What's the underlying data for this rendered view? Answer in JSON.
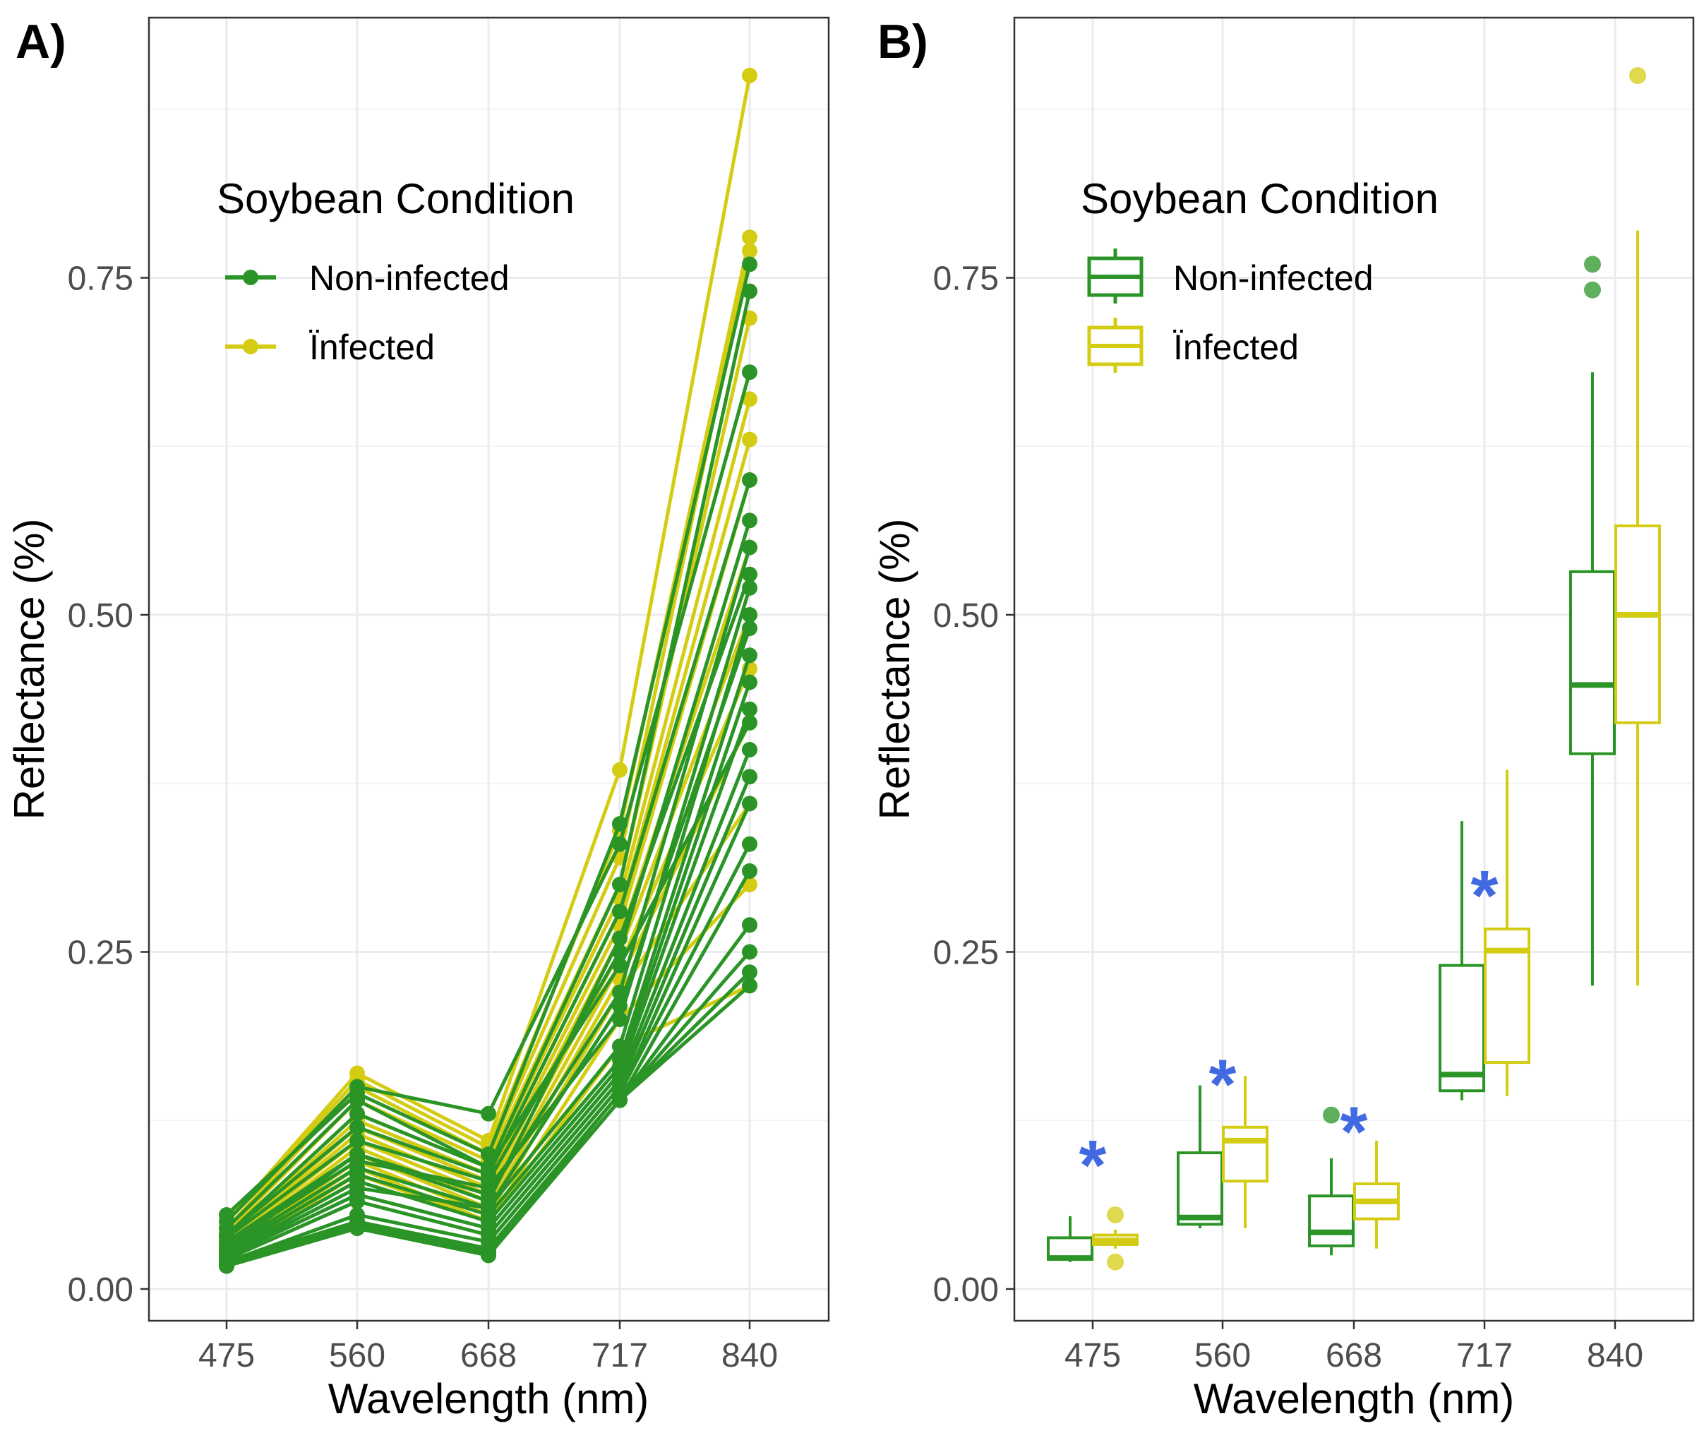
{
  "figure": {
    "panel_a_label": "A)",
    "panel_b_label": "B)"
  },
  "colors": {
    "non_infected": "#2a9427",
    "infected": "#d4cc12",
    "star": "#4169e1"
  },
  "chart_data": [
    {
      "panel": "A)",
      "type": "line",
      "xlabel": "Wavelength (nm)",
      "ylabel": "Reflectance (%)",
      "categories": [
        "475",
        "560",
        "668",
        "717",
        "840"
      ],
      "yticks": [
        "0.00",
        "0.25",
        "0.50",
        "0.75"
      ],
      "ylim": [
        -0.025,
        0.94
      ],
      "legend": {
        "title": "Soybean Condition",
        "position": "top-left",
        "entries": [
          "Non-infected",
          "Ïnfected"
        ]
      },
      "series": [
        {
          "name": "Non-infected",
          "group": "Non-infected",
          "values": [
            0.05,
            0.15,
            0.13,
            0.33,
            0.68
          ]
        },
        {
          "name": "Non-infected",
          "group": "Non-infected",
          "values": [
            0.055,
            0.145,
            0.1,
            0.345,
            0.76
          ]
        },
        {
          "name": "Non-infected",
          "group": "Non-infected",
          "values": [
            0.045,
            0.14,
            0.09,
            0.3,
            0.74
          ]
        },
        {
          "name": "Non-infected",
          "group": "Non-infected",
          "values": [
            0.04,
            0.12,
            0.085,
            0.28,
            0.6
          ]
        },
        {
          "name": "Non-infected",
          "group": "Non-infected",
          "values": [
            0.038,
            0.11,
            0.08,
            0.25,
            0.57
          ]
        },
        {
          "name": "Non-infected",
          "group": "Non-infected",
          "values": [
            0.035,
            0.1,
            0.07,
            0.22,
            0.55
          ]
        },
        {
          "name": "Non-infected",
          "group": "Non-infected",
          "values": [
            0.033,
            0.095,
            0.075,
            0.2,
            0.52
          ]
        },
        {
          "name": "Non-infected",
          "group": "Non-infected",
          "values": [
            0.03,
            0.09,
            0.06,
            0.18,
            0.5
          ]
        },
        {
          "name": "Non-infected",
          "group": "Non-infected",
          "values": [
            0.028,
            0.085,
            0.055,
            0.17,
            0.47
          ]
        },
        {
          "name": "Non-infected",
          "group": "Non-infected",
          "values": [
            0.026,
            0.08,
            0.05,
            0.165,
            0.45
          ]
        },
        {
          "name": "Non-infected",
          "group": "Non-infected",
          "values": [
            0.024,
            0.07,
            0.045,
            0.16,
            0.43
          ]
        },
        {
          "name": "Non-infected",
          "group": "Non-infected",
          "values": [
            0.022,
            0.065,
            0.04,
            0.155,
            0.4
          ]
        },
        {
          "name": "Non-infected",
          "group": "Non-infected",
          "values": [
            0.02,
            0.055,
            0.035,
            0.15,
            0.38
          ]
        },
        {
          "name": "Non-infected",
          "group": "Non-infected",
          "values": [
            0.02,
            0.05,
            0.03,
            0.145,
            0.36
          ]
        },
        {
          "name": "Non-infected",
          "group": "Non-infected",
          "values": [
            0.02,
            0.05,
            0.028,
            0.145,
            0.33
          ]
        },
        {
          "name": "Non-infected",
          "group": "Non-infected",
          "values": [
            0.018,
            0.048,
            0.027,
            0.14,
            0.31
          ]
        },
        {
          "name": "Non-infected",
          "group": "Non-infected",
          "values": [
            0.018,
            0.047,
            0.026,
            0.14,
            0.27
          ]
        },
        {
          "name": "Non-infected",
          "group": "Non-infected",
          "values": [
            0.018,
            0.046,
            0.026,
            0.14,
            0.25
          ]
        },
        {
          "name": "Non-infected",
          "group": "Non-infected",
          "values": [
            0.017,
            0.045,
            0.025,
            0.14,
            0.235
          ]
        },
        {
          "name": "Non-infected",
          "group": "Non-infected",
          "values": [
            0.017,
            0.045,
            0.025,
            0.14,
            0.225
          ]
        },
        {
          "name": "Non-infected",
          "group": "Non-infected",
          "values": [
            0.025,
            0.075,
            0.06,
            0.21,
            0.49
          ]
        },
        {
          "name": "Non-infected",
          "group": "Non-infected",
          "values": [
            0.03,
            0.1,
            0.065,
            0.26,
            0.53
          ]
        },
        {
          "name": "Non-infected",
          "group": "Non-infected",
          "values": [
            0.04,
            0.13,
            0.09,
            0.24,
            0.42
          ]
        },
        {
          "name": "Infected",
          "group": "Ïnfected",
          "values": [
            0.05,
            0.16,
            0.11,
            0.385,
            0.9
          ]
        },
        {
          "name": "Infected",
          "group": "Ïnfected",
          "values": [
            0.05,
            0.155,
            0.105,
            0.34,
            0.78
          ]
        },
        {
          "name": "Infected",
          "group": "Ïnfected",
          "values": [
            0.045,
            0.15,
            0.1,
            0.32,
            0.77
          ]
        },
        {
          "name": "Infected",
          "group": "Ïnfected",
          "values": [
            0.042,
            0.14,
            0.095,
            0.3,
            0.72
          ]
        },
        {
          "name": "Infected",
          "group": "Ïnfected",
          "values": [
            0.04,
            0.13,
            0.09,
            0.29,
            0.66
          ]
        },
        {
          "name": "Infected",
          "group": "Ïnfected",
          "values": [
            0.038,
            0.125,
            0.085,
            0.28,
            0.63
          ]
        },
        {
          "name": "Infected",
          "group": "Ïnfected",
          "values": [
            0.036,
            0.12,
            0.08,
            0.27,
            0.6
          ]
        },
        {
          "name": "Infected",
          "group": "Ïnfected",
          "values": [
            0.035,
            0.115,
            0.075,
            0.26,
            0.55
          ]
        },
        {
          "name": "Infected",
          "group": "Ïnfected",
          "values": [
            0.034,
            0.11,
            0.07,
            0.25,
            0.5
          ]
        },
        {
          "name": "Infected",
          "group": "Ïnfected",
          "values": [
            0.032,
            0.105,
            0.065,
            0.24,
            0.46
          ]
        },
        {
          "name": "Infected",
          "group": "Ïnfected",
          "values": [
            0.03,
            0.1,
            0.06,
            0.23,
            0.42
          ]
        },
        {
          "name": "Infected",
          "group": "Ïnfected",
          "values": [
            0.028,
            0.095,
            0.055,
            0.22,
            0.36
          ]
        },
        {
          "name": "Infected",
          "group": "Ïnfected",
          "values": [
            0.026,
            0.09,
            0.05,
            0.2,
            0.3
          ]
        },
        {
          "name": "Infected",
          "group": "Ïnfected",
          "values": [
            0.025,
            0.085,
            0.05,
            0.18,
            0.225
          ]
        }
      ]
    },
    {
      "panel": "B)",
      "type": "box",
      "xlabel": "Wavelength (nm)",
      "ylabel": "Reflectance (%)",
      "categories": [
        "475",
        "560",
        "668",
        "717",
        "840"
      ],
      "yticks": [
        "0.00",
        "0.25",
        "0.50",
        "0.75"
      ],
      "ylim": [
        -0.025,
        0.94
      ],
      "legend": {
        "title": "Soybean Condition",
        "position": "top-left",
        "entries": [
          "Non-infected",
          "Ïnfected"
        ]
      },
      "significance_marker": "*",
      "significant_categories": [
        "475",
        "560",
        "668",
        "717"
      ],
      "series": [
        {
          "name": "Non-infected",
          "boxes": [
            {
              "category": "475",
              "min": 0.02,
              "q1": 0.022,
              "median": 0.023,
              "q3": 0.038,
              "max": 0.054,
              "outliers": []
            },
            {
              "category": "560",
              "min": 0.045,
              "q1": 0.048,
              "median": 0.053,
              "q3": 0.101,
              "max": 0.151,
              "outliers": []
            },
            {
              "category": "668",
              "min": 0.025,
              "q1": 0.032,
              "median": 0.042,
              "q3": 0.069,
              "max": 0.097,
              "outliers": [
                0.129
              ]
            },
            {
              "category": "717",
              "min": 0.14,
              "q1": 0.147,
              "median": 0.159,
              "q3": 0.24,
              "max": 0.347,
              "outliers": []
            },
            {
              "category": "840",
              "min": 0.225,
              "q1": 0.397,
              "median": 0.448,
              "q3": 0.532,
              "max": 0.68,
              "outliers": [
                0.741,
                0.76
              ]
            }
          ]
        },
        {
          "name": "Ïnfected",
          "boxes": [
            {
              "category": "475",
              "min": 0.03,
              "q1": 0.033,
              "median": 0.036,
              "q3": 0.04,
              "max": 0.044,
              "outliers": [
                0.02,
                0.055
              ]
            },
            {
              "category": "560",
              "min": 0.045,
              "q1": 0.08,
              "median": 0.11,
              "q3": 0.12,
              "max": 0.158,
              "outliers": []
            },
            {
              "category": "668",
              "min": 0.03,
              "q1": 0.052,
              "median": 0.065,
              "q3": 0.078,
              "max": 0.11,
              "outliers": []
            },
            {
              "category": "717",
              "min": 0.143,
              "q1": 0.168,
              "median": 0.251,
              "q3": 0.267,
              "max": 0.385,
              "outliers": []
            },
            {
              "category": "840",
              "min": 0.225,
              "q1": 0.42,
              "median": 0.5,
              "q3": 0.566,
              "max": 0.785,
              "outliers": [
                0.9
              ]
            }
          ]
        }
      ]
    }
  ]
}
